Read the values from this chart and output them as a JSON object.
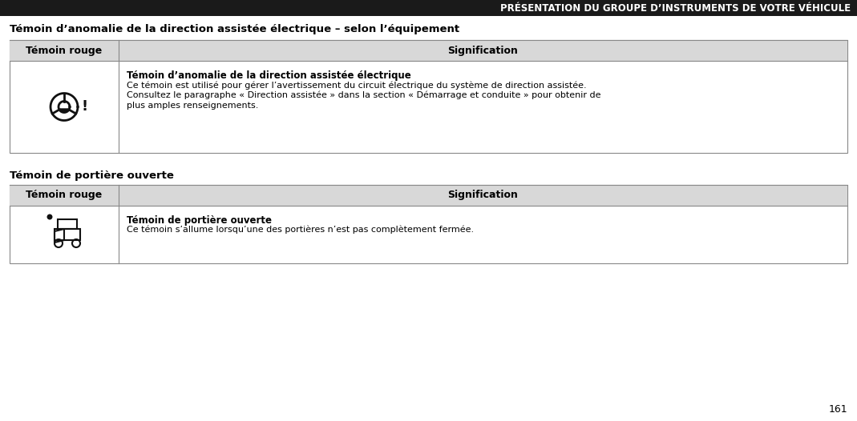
{
  "bg_color": "#ffffff",
  "header_bar_color": "#1a1a1a",
  "header_text": "PRÉSENTATION DU GROUPE D’INSTRUMENTS DE VOTRE VÉHICULE",
  "header_text_color": "#ffffff",
  "header_fontsize": 8.5,
  "section1_title": "Témoin d’anomalie de la direction assistée électrique – selon l’équipement",
  "section2_title": "Témoin de portière ouverte",
  "section_title_fontsize": 9.5,
  "col1_header": "Témoin rouge",
  "col2_header": "Signification",
  "table_header_fontsize": 9.0,
  "table_border_color": "#888888",
  "table_header_bg": "#d8d8d8",
  "row1_bold_text": "Témoin d’anomalie de la direction assistée électrique",
  "row1_line1": "Ce témoin est utilisé pour gérer l’avertissement du circuit électrique du système de direction assistée.",
  "row1_line2": "Consultez le paragraphe « Direction assistée » dans la section « Démarrage et conduite » pour obtenir de",
  "row1_line3": "plus amples renseignements.",
  "row2_bold_text": "Témoin de portière ouverte",
  "row2_line1": "Ce témoin s’allume lorsqu’une des portières n’est pas complètement fermée.",
  "content_fontsize": 8.0,
  "bold_fontsize": 8.5,
  "page_number": "161",
  "page_number_fontsize": 9
}
